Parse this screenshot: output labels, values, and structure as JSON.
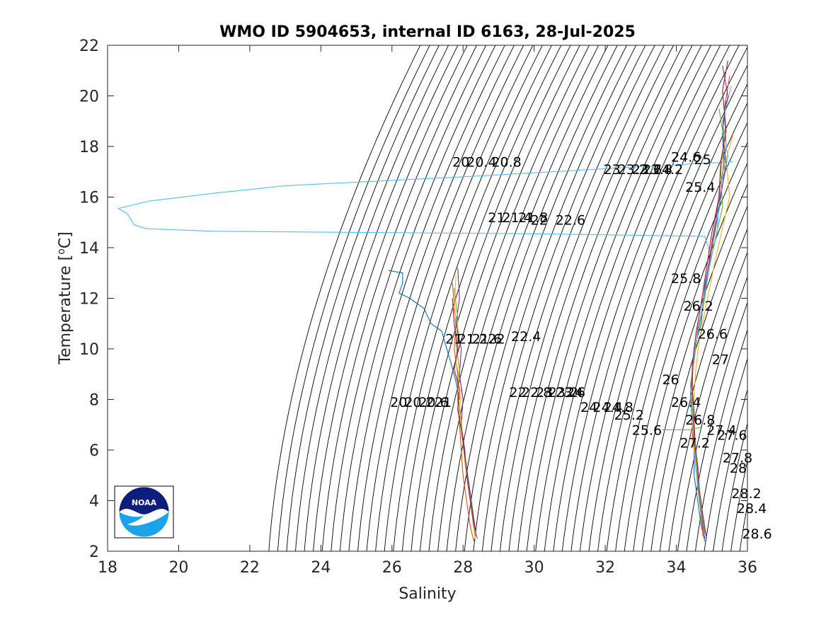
{
  "chart_data": {
    "type": "line",
    "title": "WMO ID 5904653, internal ID 6163, 28-Jul-2025",
    "xlabel": "Salinity",
    "ylabel_main": "Temperature [",
    "ylabel_sup": "o",
    "ylabel_end": "C]",
    "xlim": [
      18,
      36
    ],
    "ylim": [
      2,
      22
    ],
    "x_ticks": [
      18,
      20,
      22,
      24,
      26,
      28,
      30,
      32,
      34,
      36
    ],
    "y_ticks": [
      2,
      4,
      6,
      8,
      10,
      12,
      14,
      16,
      18,
      20,
      22
    ],
    "grid": false,
    "isopycnal_lines": {
      "sigma_min": 18.0,
      "sigma_max": 29.4,
      "step": 0.2,
      "color": "#000000"
    },
    "contour_labels": [
      {
        "text": "20",
        "s": 27.7,
        "t": 17.4
      },
      {
        "text": "20.4",
        "s": 28.1,
        "t": 17.4
      },
      {
        "text": "20.8",
        "s": 28.8,
        "t": 17.4
      },
      {
        "text": "21",
        "s": 28.7,
        "t": 15.2
      },
      {
        "text": "21.4",
        "s": 29.1,
        "t": 15.2
      },
      {
        "text": "21.8",
        "s": 29.55,
        "t": 15.2
      },
      {
        "text": "22",
        "s": 29.9,
        "t": 15.1
      },
      {
        "text": "22.6",
        "s": 30.6,
        "t": 15.1
      },
      {
        "text": "21",
        "s": 27.5,
        "t": 10.4
      },
      {
        "text": "21.2",
        "s": 27.85,
        "t": 10.4
      },
      {
        "text": "21.6",
        "s": 28.25,
        "t": 10.4
      },
      {
        "text": "22",
        "s": 28.7,
        "t": 10.4
      },
      {
        "text": "22.4",
        "s": 29.35,
        "t": 10.5
      },
      {
        "text": "20",
        "s": 25.95,
        "t": 7.9
      },
      {
        "text": "20.2",
        "s": 26.35,
        "t": 7.9
      },
      {
        "text": "20.6",
        "s": 26.75,
        "t": 7.9
      },
      {
        "text": "21",
        "s": 27.2,
        "t": 7.9
      },
      {
        "text": "22",
        "s": 29.3,
        "t": 8.3
      },
      {
        "text": "22.8",
        "s": 29.65,
        "t": 8.3
      },
      {
        "text": "23",
        "s": 30.05,
        "t": 8.3
      },
      {
        "text": "23.2",
        "s": 30.4,
        "t": 8.3
      },
      {
        "text": "23.6",
        "s": 30.6,
        "t": 8.3
      },
      {
        "text": "24",
        "s": 30.9,
        "t": 8.3
      },
      {
        "text": "24",
        "s": 31.3,
        "t": 7.7
      },
      {
        "text": "24.4",
        "s": 31.65,
        "t": 7.7
      },
      {
        "text": "24.8",
        "s": 31.95,
        "t": 7.7
      },
      {
        "text": "25.2",
        "s": 32.25,
        "t": 7.4
      },
      {
        "text": "25.6",
        "s": 32.75,
        "t": 6.8
      },
      {
        "text": "23",
        "s": 31.95,
        "t": 17.1
      },
      {
        "text": "23.2",
        "s": 32.35,
        "t": 17.1
      },
      {
        "text": "23.6",
        "s": 32.75,
        "t": 17.1
      },
      {
        "text": "23.8",
        "s": 33.05,
        "t": 17.1
      },
      {
        "text": "24.2",
        "s": 33.35,
        "t": 17.1
      },
      {
        "text": "24.6",
        "s": 33.85,
        "t": 17.6
      },
      {
        "text": "25",
        "s": 34.5,
        "t": 17.5
      },
      {
        "text": "25.4",
        "s": 34.25,
        "t": 16.4
      },
      {
        "text": "25.8",
        "s": 33.85,
        "t": 12.8
      },
      {
        "text": "26.2",
        "s": 34.2,
        "t": 11.7
      },
      {
        "text": "26.6",
        "s": 34.6,
        "t": 10.6
      },
      {
        "text": "27",
        "s": 35.0,
        "t": 9.6
      },
      {
        "text": "26",
        "s": 33.6,
        "t": 8.8
      },
      {
        "text": "26.4",
        "s": 33.85,
        "t": 7.9
      },
      {
        "text": "26.8",
        "s": 34.25,
        "t": 7.2
      },
      {
        "text": "27.4",
        "s": 34.85,
        "t": 6.8
      },
      {
        "text": "27.6",
        "s": 35.15,
        "t": 6.6
      },
      {
        "text": "27.2",
        "s": 34.1,
        "t": 6.3
      },
      {
        "text": "27.8",
        "s": 35.3,
        "t": 5.7
      },
      {
        "text": "28",
        "s": 35.5,
        "t": 5.3
      },
      {
        "text": "28.2",
        "s": 35.55,
        "t": 4.3
      },
      {
        "text": "28.4",
        "s": 35.7,
        "t": 3.7
      },
      {
        "text": "28.6",
        "s": 35.85,
        "t": 2.7
      }
    ],
    "series": [
      {
        "color": "#4DBEEE",
        "values": [
          [
            35.6,
            17.4
          ],
          [
            33.0,
            17.2
          ],
          [
            28.0,
            16.8
          ],
          [
            23.0,
            16.45
          ],
          [
            21.0,
            16.15
          ],
          [
            19.2,
            15.85
          ],
          [
            18.3,
            15.55
          ],
          [
            18.55,
            15.35
          ],
          [
            18.75,
            14.9
          ],
          [
            19.1,
            14.75
          ],
          [
            21.0,
            14.65
          ],
          [
            30.0,
            14.55
          ],
          [
            34.8,
            14.45
          ],
          [
            35.0,
            13.6
          ]
        ]
      },
      {
        "color": "#0072BD",
        "values": [
          [
            25.9,
            13.1
          ],
          [
            26.3,
            13.0
          ],
          [
            26.3,
            12.6
          ],
          [
            26.2,
            12.2
          ],
          [
            26.5,
            12.0
          ],
          [
            26.9,
            11.6
          ],
          [
            27.1,
            11.0
          ],
          [
            27.4,
            10.7
          ],
          [
            27.5,
            10.2
          ],
          [
            27.65,
            9.5
          ],
          [
            27.8,
            8.7
          ],
          [
            27.9,
            8.0
          ]
        ]
      },
      {
        "color": "#D95319",
        "values": [
          [
            27.7,
            12.6
          ],
          [
            27.8,
            11.0
          ],
          [
            27.75,
            10.0
          ],
          [
            27.85,
            9.0
          ],
          [
            27.85,
            8.0
          ],
          [
            27.9,
            7.0
          ],
          [
            27.95,
            6.0
          ],
          [
            28.0,
            5.0
          ],
          [
            28.1,
            4.0
          ],
          [
            28.2,
            3.0
          ],
          [
            28.3,
            2.4
          ]
        ]
      },
      {
        "color": "#EDB120",
        "values": [
          [
            27.8,
            12.9
          ],
          [
            27.75,
            11.5
          ],
          [
            27.9,
            10.5
          ],
          [
            27.8,
            9.5
          ],
          [
            27.95,
            8.5
          ],
          [
            27.9,
            7.5
          ],
          [
            28.0,
            6.5
          ],
          [
            28.05,
            5.5
          ],
          [
            28.15,
            4.5
          ],
          [
            28.25,
            3.5
          ],
          [
            28.35,
            2.4
          ]
        ]
      },
      {
        "color": "#7E2F8E",
        "values": [
          [
            27.85,
            13.2
          ],
          [
            27.9,
            12.0
          ],
          [
            27.8,
            11.0
          ],
          [
            27.95,
            10.0
          ],
          [
            27.9,
            9.0
          ],
          [
            28.0,
            8.0
          ],
          [
            27.95,
            7.0
          ],
          [
            28.05,
            6.0
          ],
          [
            28.1,
            5.0
          ],
          [
            28.2,
            4.0
          ],
          [
            28.3,
            3.0
          ],
          [
            28.4,
            2.5
          ]
        ]
      },
      {
        "color": "#77AC30",
        "values": [
          [
            27.75,
            12.4
          ],
          [
            27.85,
            11.2
          ],
          [
            27.8,
            10.2
          ],
          [
            27.9,
            9.2
          ],
          [
            27.85,
            8.2
          ],
          [
            27.95,
            7.2
          ],
          [
            28.0,
            6.2
          ],
          [
            28.1,
            5.2
          ],
          [
            28.2,
            4.2
          ],
          [
            28.3,
            3.2
          ],
          [
            28.35,
            2.6
          ]
        ]
      },
      {
        "color": "#A2142F",
        "values": [
          [
            27.7,
            12.0
          ],
          [
            27.75,
            11.0
          ],
          [
            27.85,
            10.0
          ],
          [
            27.75,
            9.2
          ],
          [
            27.9,
            8.4
          ],
          [
            27.85,
            7.6
          ],
          [
            27.95,
            6.8
          ],
          [
            28.05,
            5.8
          ],
          [
            28.15,
            4.8
          ],
          [
            28.25,
            3.8
          ],
          [
            28.35,
            2.8
          ]
        ]
      },
      {
        "color": "#0072BD",
        "values": [
          [
            35.4,
            19.8
          ],
          [
            35.3,
            18.5
          ],
          [
            35.35,
            17.0
          ],
          [
            35.2,
            15.5
          ],
          [
            35.0,
            14.0
          ],
          [
            34.8,
            12.5
          ],
          [
            34.7,
            11.0
          ],
          [
            34.5,
            10.0
          ],
          [
            34.45,
            9.0
          ],
          [
            34.4,
            8.0
          ],
          [
            34.45,
            7.0
          ],
          [
            34.5,
            6.0
          ],
          [
            34.5,
            5.0
          ],
          [
            34.6,
            4.0
          ],
          [
            34.7,
            3.0
          ],
          [
            34.8,
            2.4
          ]
        ]
      },
      {
        "color": "#D95319",
        "values": [
          [
            35.5,
            20.8
          ],
          [
            35.35,
            19.5
          ],
          [
            35.4,
            18.0
          ],
          [
            35.25,
            16.5
          ],
          [
            35.1,
            15.0
          ],
          [
            34.95,
            13.5
          ],
          [
            34.8,
            12.0
          ],
          [
            34.6,
            10.8
          ],
          [
            34.5,
            9.5
          ],
          [
            34.4,
            8.5
          ],
          [
            34.5,
            7.5
          ],
          [
            34.45,
            6.5
          ],
          [
            34.55,
            5.5
          ],
          [
            34.6,
            4.5
          ],
          [
            34.7,
            3.5
          ],
          [
            34.75,
            2.6
          ]
        ]
      },
      {
        "color": "#EDB120",
        "values": [
          [
            35.6,
            18.5
          ],
          [
            35.4,
            17.5
          ],
          [
            35.5,
            16.0
          ],
          [
            35.3,
            14.8
          ],
          [
            35.05,
            13.2
          ],
          [
            34.85,
            11.8
          ],
          [
            34.65,
            10.4
          ],
          [
            34.55,
            9.2
          ],
          [
            34.5,
            8.2
          ],
          [
            34.45,
            7.2
          ],
          [
            34.5,
            6.2
          ],
          [
            34.55,
            5.2
          ],
          [
            34.65,
            4.2
          ],
          [
            34.7,
            3.2
          ]
        ]
      },
      {
        "color": "#7E2F8E",
        "values": [
          [
            35.3,
            21.2
          ],
          [
            35.45,
            20.0
          ],
          [
            35.3,
            18.8
          ],
          [
            35.4,
            17.2
          ],
          [
            35.2,
            15.8
          ],
          [
            35.0,
            14.2
          ],
          [
            34.85,
            12.8
          ],
          [
            34.7,
            11.4
          ],
          [
            34.55,
            10.2
          ],
          [
            34.45,
            9.2
          ],
          [
            34.4,
            8.2
          ],
          [
            34.5,
            7.0
          ],
          [
            34.55,
            6.0
          ],
          [
            34.6,
            5.0
          ],
          [
            34.65,
            4.0
          ],
          [
            34.75,
            3.0
          ],
          [
            34.8,
            2.5
          ]
        ]
      },
      {
        "color": "#77AC30",
        "values": [
          [
            35.2,
            19.5
          ],
          [
            35.35,
            18.2
          ],
          [
            35.25,
            17.0
          ],
          [
            35.3,
            15.6
          ],
          [
            35.1,
            14.4
          ],
          [
            34.9,
            13.0
          ],
          [
            34.75,
            11.6
          ],
          [
            34.6,
            10.6
          ],
          [
            34.5,
            9.6
          ],
          [
            34.4,
            8.6
          ],
          [
            34.45,
            7.6
          ],
          [
            34.5,
            6.6
          ],
          [
            34.55,
            5.6
          ],
          [
            34.6,
            4.6
          ],
          [
            34.7,
            3.6
          ],
          [
            34.8,
            2.7
          ]
        ]
      },
      {
        "color": "#4DBEEE",
        "values": [
          [
            35.55,
            20.4
          ],
          [
            35.3,
            19.0
          ],
          [
            35.45,
            17.6
          ],
          [
            35.2,
            16.2
          ],
          [
            35.15,
            14.6
          ],
          [
            34.95,
            13.4
          ],
          [
            34.8,
            12.2
          ],
          [
            34.65,
            11.0
          ],
          [
            34.5,
            9.8
          ],
          [
            34.45,
            8.8
          ],
          [
            34.4,
            7.8
          ],
          [
            34.5,
            6.8
          ],
          [
            34.55,
            5.8
          ],
          [
            34.6,
            4.8
          ],
          [
            34.7,
            3.8
          ],
          [
            34.8,
            2.8
          ]
        ]
      },
      {
        "color": "#A2142F",
        "values": [
          [
            35.45,
            21.4
          ],
          [
            35.3,
            20.2
          ],
          [
            35.4,
            18.6
          ],
          [
            35.25,
            17.4
          ],
          [
            35.2,
            16.0
          ],
          [
            35.0,
            14.6
          ],
          [
            34.85,
            13.2
          ],
          [
            34.7,
            11.8
          ],
          [
            34.55,
            10.6
          ],
          [
            34.45,
            9.4
          ],
          [
            34.45,
            8.4
          ],
          [
            34.5,
            7.4
          ],
          [
            34.5,
            6.4
          ],
          [
            34.6,
            5.4
          ],
          [
            34.65,
            4.4
          ],
          [
            34.75,
            3.4
          ],
          [
            34.85,
            2.5
          ]
        ]
      },
      {
        "color": "#77AC30",
        "values": [
          [
            33.6,
            6.8
          ],
          [
            34.4,
            6.8
          ],
          [
            34.7,
            6.9
          ]
        ]
      }
    ]
  }
}
